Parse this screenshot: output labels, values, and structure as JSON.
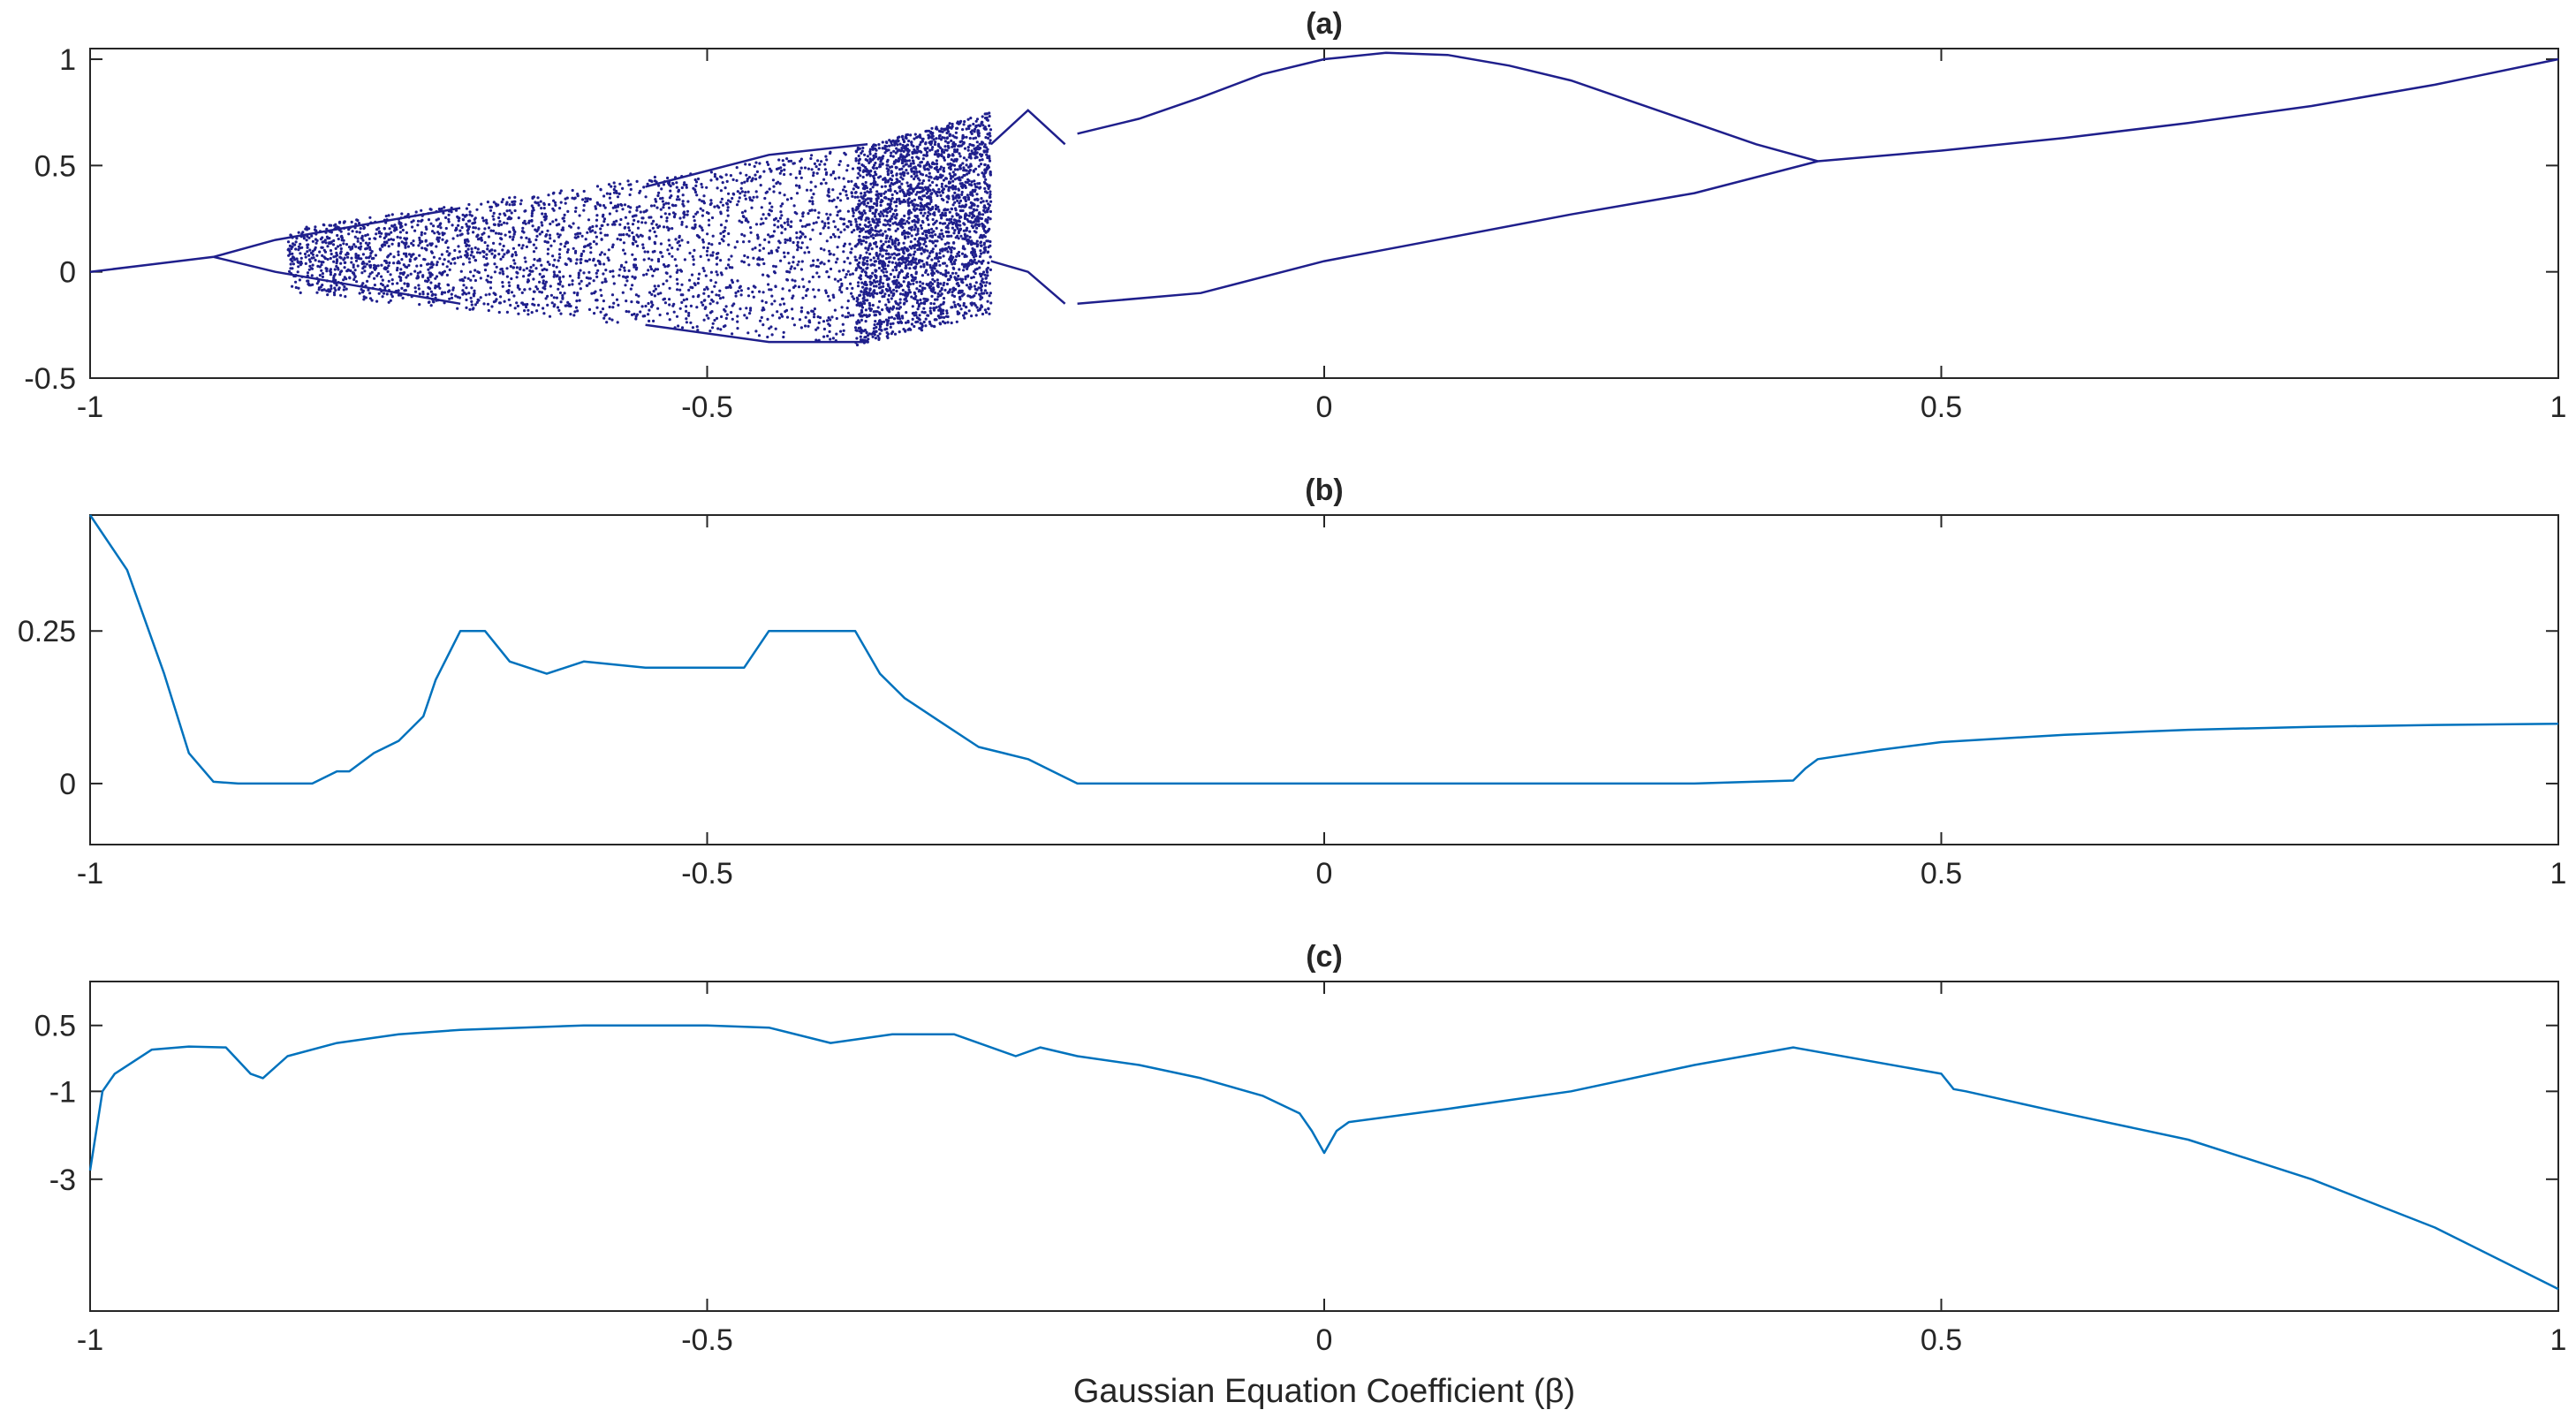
{
  "figure": {
    "xlabel": "Gaussian Equation Coefficient (β)"
  },
  "chart_data": [
    {
      "type": "scatter",
      "title": "(a)",
      "xlim": [
        -1,
        1
      ],
      "ylim": [
        -0.5,
        1.05
      ],
      "xticks": [
        "-1",
        "-0.5",
        "0",
        "0.5",
        "1"
      ],
      "yticks": [
        "-0.5",
        "0",
        "0.5",
        "1"
      ],
      "xtick_values": [
        -1,
        -0.5,
        0,
        0.5,
        1
      ],
      "ytick_values": [
        -0.5,
        0,
        0.5,
        1
      ],
      "color": "#1f1f8c",
      "description_points": "bifurcation diagram",
      "branches": [
        {
          "x": [
            -1,
            -0.95,
            -0.9
          ],
          "y": [
            0,
            0.035,
            0.07
          ]
        },
        {
          "x": [
            -0.9,
            -0.85,
            -0.8,
            -0.75,
            -0.7
          ],
          "y": [
            0.07,
            0.15,
            0.2,
            0.25,
            0.3
          ]
        },
        {
          "x": [
            -0.9,
            -0.85,
            -0.8,
            -0.75,
            -0.7
          ],
          "y": [
            0.07,
            0.0,
            -0.05,
            -0.1,
            -0.15
          ]
        },
        {
          "x": [
            -0.55,
            -0.45,
            -0.37
          ],
          "y": [
            0.4,
            0.55,
            0.6
          ]
        },
        {
          "x": [
            -0.55,
            -0.45,
            -0.37
          ],
          "y": [
            -0.25,
            -0.33,
            -0.33
          ]
        },
        {
          "x": [
            -0.27,
            -0.24,
            -0.21
          ],
          "y": [
            0.6,
            0.76,
            0.6
          ]
        },
        {
          "x": [
            -0.27,
            -0.24,
            -0.21
          ],
          "y": [
            0.05,
            0.0,
            -0.15
          ]
        },
        {
          "x": [
            -0.2,
            -0.15,
            -0.1,
            -0.05,
            0,
            0.05,
            0.1,
            0.15,
            0.2,
            0.25,
            0.3,
            0.35,
            0.4
          ],
          "y": [
            0.65,
            0.72,
            0.82,
            0.93,
            1.0,
            1.03,
            1.02,
            0.97,
            0.9,
            0.8,
            0.7,
            0.6,
            0.52
          ]
        },
        {
          "x": [
            -0.2,
            -0.1,
            0,
            0.1,
            0.2,
            0.3,
            0.4
          ],
          "y": [
            -0.15,
            -0.1,
            0.05,
            0.16,
            0.27,
            0.37,
            0.52
          ]
        },
        {
          "x": [
            0.4,
            0.5,
            0.6,
            0.7,
            0.8,
            0.9,
            1.0
          ],
          "y": [
            0.52,
            0.57,
            0.63,
            0.7,
            0.78,
            0.88,
            1.0
          ]
        }
      ],
      "chaotic_regions": [
        {
          "x": [
            -0.84,
            -0.38
          ],
          "y_low_start": -0.1,
          "y_high_start": 0.2,
          "y_low_end": -0.35,
          "y_high_end": 0.58
        },
        {
          "x": [
            -0.38,
            -0.27
          ],
          "y_low_start": -0.35,
          "y_high_start": 0.58,
          "y_low_end": -0.2,
          "y_high_end": 0.75
        }
      ]
    },
    {
      "type": "line",
      "title": "(b)",
      "xlim": [
        -1,
        1
      ],
      "ylim": [
        -0.1,
        0.44
      ],
      "xticks": [
        "-1",
        "-0.5",
        "0",
        "0.5",
        "1"
      ],
      "yticks": [
        "0",
        "0.25"
      ],
      "xtick_values": [
        -1,
        -0.5,
        0,
        0.5,
        1
      ],
      "ytick_values": [
        0,
        0.25
      ],
      "color": "#0072bd",
      "x": [
        -1,
        -0.97,
        -0.94,
        -0.92,
        -0.9,
        -0.88,
        -0.82,
        -0.8,
        -0.79,
        -0.77,
        -0.75,
        -0.73,
        -0.72,
        -0.7,
        -0.68,
        -0.66,
        -0.63,
        -0.6,
        -0.55,
        -0.5,
        -0.47,
        -0.45,
        -0.42,
        -0.4,
        -0.38,
        -0.36,
        -0.34,
        -0.31,
        -0.28,
        -0.26,
        -0.24,
        -0.22,
        -0.2,
        -0.1,
        0,
        0.1,
        0.2,
        0.3,
        0.38,
        0.39,
        0.4,
        0.45,
        0.5,
        0.6,
        0.7,
        0.8,
        0.9,
        1.0
      ],
      "y": [
        0.44,
        0.35,
        0.18,
        0.05,
        0.003,
        0.0,
        0.0,
        0.02,
        0.02,
        0.05,
        0.07,
        0.11,
        0.17,
        0.25,
        0.25,
        0.2,
        0.18,
        0.2,
        0.19,
        0.19,
        0.19,
        0.25,
        0.25,
        0.25,
        0.25,
        0.18,
        0.14,
        0.1,
        0.06,
        0.05,
        0.04,
        0.02,
        0.0,
        0.0,
        0.0,
        0.0,
        0.0,
        0.0,
        0.005,
        0.025,
        0.04,
        0.055,
        0.068,
        0.08,
        0.088,
        0.093,
        0.096,
        0.098
      ]
    },
    {
      "type": "line",
      "title": "(c)",
      "xlim": [
        -1,
        1
      ],
      "ylim": [
        -6,
        1.5
      ],
      "xticks": [
        "-1",
        "-0.5",
        "0",
        "0.5",
        "1"
      ],
      "yticks": [
        "0.5",
        "-1",
        "-3"
      ],
      "xtick_values": [
        -1,
        -0.5,
        0,
        0.5,
        1
      ],
      "ytick_values": [
        0.5,
        -1,
        -3
      ],
      "color": "#0072bd",
      "x": [
        -1,
        -0.99,
        -0.98,
        -0.95,
        -0.92,
        -0.89,
        -0.87,
        -0.86,
        -0.84,
        -0.8,
        -0.75,
        -0.7,
        -0.65,
        -0.6,
        -0.55,
        -0.5,
        -0.45,
        -0.4,
        -0.35,
        -0.3,
        -0.25,
        -0.23,
        -0.2,
        -0.15,
        -0.1,
        -0.05,
        -0.02,
        -0.01,
        0,
        0.01,
        0.02,
        0.1,
        0.2,
        0.3,
        0.38,
        0.5,
        0.51,
        0.52,
        0.6,
        0.7,
        0.8,
        0.9,
        1.0
      ],
      "y": [
        -2.8,
        -1.0,
        -0.6,
        -0.05,
        0.02,
        0.0,
        -0.6,
        -0.7,
        -0.2,
        0.1,
        0.3,
        0.4,
        0.45,
        0.5,
        0.5,
        0.5,
        0.45,
        0.1,
        0.3,
        0.3,
        -0.2,
        0.0,
        -0.2,
        -0.4,
        -0.7,
        -1.1,
        -1.5,
        -1.9,
        -2.4,
        -1.9,
        -1.7,
        -1.4,
        -1.0,
        -0.4,
        0.0,
        -0.6,
        -0.95,
        -1.0,
        -1.5,
        -2.1,
        -3.0,
        -4.1,
        -5.5
      ]
    }
  ]
}
